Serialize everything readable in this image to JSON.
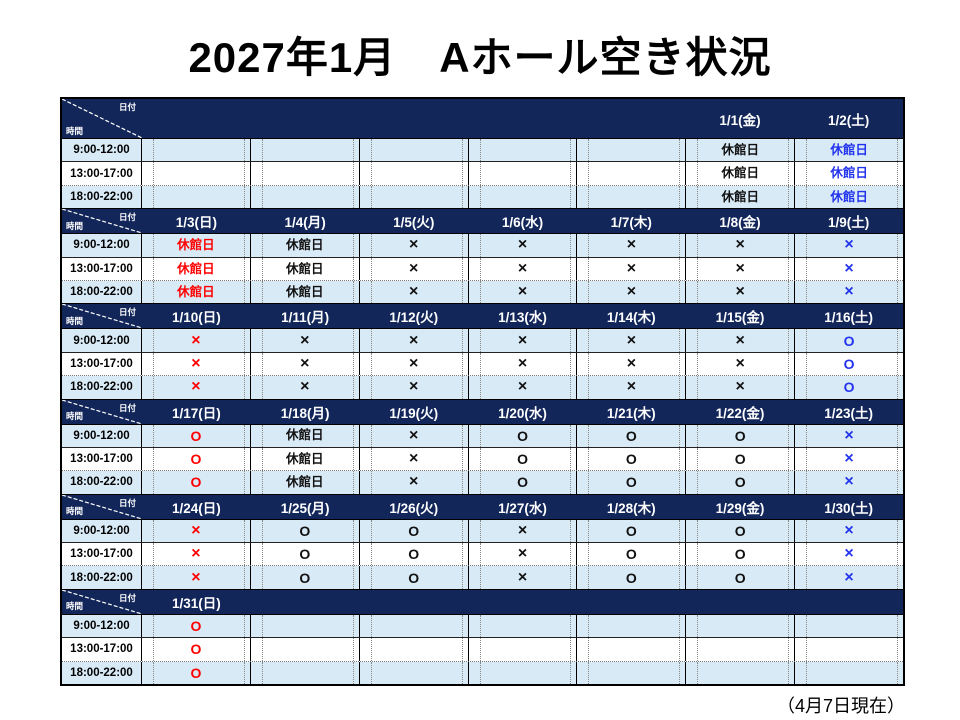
{
  "title": "2027年1月　Aホール空き状況",
  "footnote": "（4月7日現在）",
  "corner": {
    "date_label": "日付",
    "time_label": "時間"
  },
  "time_slots": [
    "9:00-12:00",
    "13:00-17:00",
    "18:00-22:00"
  ],
  "symbols": {
    "closed": "休館日",
    "unavailable": "×",
    "available": "O"
  },
  "colors": {
    "header_bg": "#12265A",
    "row_stripe_bg": "#D9EAF7",
    "red": "#FF0000",
    "blue": "#2233EE",
    "black": "#111111"
  },
  "weeks": [
    {
      "dates": [
        "",
        "",
        "",
        "",
        "",
        "1/1(金)",
        "1/2(土)"
      ],
      "marks": [
        "",
        "",
        "",
        "",
        "",
        "休館日",
        "休館日"
      ],
      "mark_colors": [
        "",
        "",
        "",
        "",
        "",
        "black",
        "blue"
      ]
    },
    {
      "dates": [
        "1/3(日)",
        "1/4(月)",
        "1/5(火)",
        "1/6(水)",
        "1/7(木)",
        "1/8(金)",
        "1/9(土)"
      ],
      "marks": [
        "休館日",
        "休館日",
        "×",
        "×",
        "×",
        "×",
        "×"
      ],
      "mark_colors": [
        "red",
        "black",
        "black",
        "black",
        "black",
        "black",
        "blue"
      ]
    },
    {
      "dates": [
        "1/10(日)",
        "1/11(月)",
        "1/12(火)",
        "1/13(水)",
        "1/14(木)",
        "1/15(金)",
        "1/16(土)"
      ],
      "marks": [
        "×",
        "×",
        "×",
        "×",
        "×",
        "×",
        "O"
      ],
      "mark_colors": [
        "red",
        "black",
        "black",
        "black",
        "black",
        "black",
        "blue"
      ]
    },
    {
      "dates": [
        "1/17(日)",
        "1/18(月)",
        "1/19(火)",
        "1/20(水)",
        "1/21(木)",
        "1/22(金)",
        "1/23(土)"
      ],
      "marks": [
        "O",
        "休館日",
        "×",
        "O",
        "O",
        "O",
        "×"
      ],
      "mark_colors": [
        "red",
        "black",
        "black",
        "black",
        "black",
        "black",
        "blue"
      ]
    },
    {
      "dates": [
        "1/24(日)",
        "1/25(月)",
        "1/26(火)",
        "1/27(水)",
        "1/28(木)",
        "1/29(金)",
        "1/30(土)"
      ],
      "marks": [
        "×",
        "O",
        "O",
        "×",
        "O",
        "O",
        "×"
      ],
      "mark_colors": [
        "red",
        "black",
        "black",
        "black",
        "black",
        "black",
        "blue"
      ]
    },
    {
      "dates": [
        "1/31(日)",
        "",
        "",
        "",
        "",
        "",
        ""
      ],
      "marks": [
        "O",
        "",
        "",
        "",
        "",
        "",
        ""
      ],
      "mark_colors": [
        "red",
        "",
        "",
        "",
        "",
        "",
        ""
      ]
    }
  ]
}
